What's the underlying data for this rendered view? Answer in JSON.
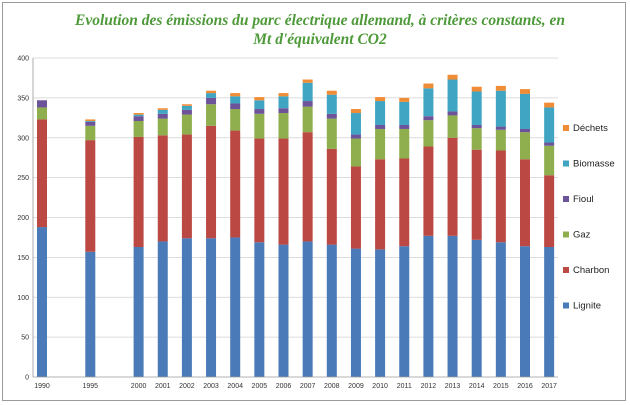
{
  "chart_data": {
    "type": "bar",
    "stacked": true,
    "title_line1": "Evolution des émissions du parc électrique allemand, à critères constants, en",
    "title_line2": "Mt d'équivalent CO2",
    "xlabel": "",
    "ylabel": "",
    "ylim": [
      0,
      400
    ],
    "yticks": [
      0,
      50,
      100,
      150,
      200,
      250,
      300,
      350,
      400
    ],
    "grid": true,
    "legend_position": "right",
    "categories": [
      "1990",
      "1995",
      "2000",
      "2001",
      "2002",
      "2003",
      "2004",
      "2005",
      "2006",
      "2007",
      "2008",
      "2009",
      "2010",
      "2011",
      "2012",
      "2013",
      "2014",
      "2015",
      "2016",
      "2017"
    ],
    "category_positions": [
      0,
      2,
      4,
      5,
      6,
      7,
      8,
      9,
      10,
      11,
      12,
      13,
      14,
      15,
      16,
      17,
      18,
      19,
      20,
      21
    ],
    "series": [
      {
        "name": "Lignite",
        "color": "#4a7ab8",
        "values": [
          188,
          157,
          163,
          170,
          174,
          174,
          175,
          169,
          166,
          170,
          166,
          161,
          160,
          164,
          177,
          177,
          172,
          169,
          164,
          163
        ]
      },
      {
        "name": "Charbon",
        "color": "#bc4843",
        "values": [
          135,
          140,
          138,
          133,
          130,
          141,
          134,
          130,
          133,
          137,
          120,
          103,
          113,
          110,
          112,
          123,
          113,
          115,
          109,
          90
        ]
      },
      {
        "name": "Gaz",
        "color": "#8fae4d",
        "values": [
          15,
          18,
          20,
          21,
          25,
          27,
          27,
          31,
          32,
          32,
          38,
          35,
          38,
          37,
          33,
          28,
          27,
          26,
          34,
          37
        ]
      },
      {
        "name": "Fioul",
        "color": "#6d549a",
        "values": [
          9,
          5,
          6,
          6,
          6,
          8,
          7,
          6,
          6,
          7,
          6,
          5,
          5,
          5,
          5,
          5,
          4,
          4,
          4,
          4
        ]
      },
      {
        "name": "Biomasse",
        "color": "#3fa5c2",
        "values": [
          0,
          1,
          2,
          5,
          5,
          6,
          9,
          11,
          15,
          23,
          24,
          27,
          30,
          29,
          35,
          40,
          42,
          45,
          44,
          44
        ]
      },
      {
        "name": "Déchets",
        "color": "#f08c35",
        "values": [
          0,
          2,
          2,
          2,
          2,
          3,
          4,
          4,
          4,
          4,
          5,
          5,
          5,
          5,
          6,
          6,
          6,
          6,
          6,
          6
        ]
      }
    ]
  }
}
